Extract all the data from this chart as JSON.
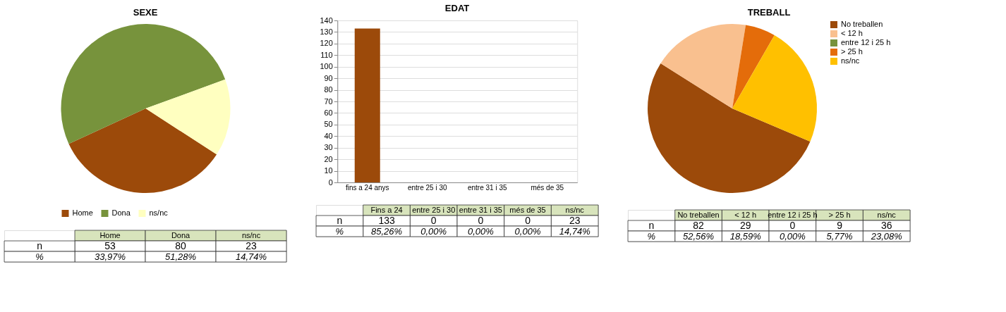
{
  "chart_data": [
    {
      "type": "pie",
      "title": "SEXE",
      "categories": [
        "Home",
        "Dona",
        "ns/nc"
      ],
      "values": [
        33.97,
        51.28,
        14.74
      ],
      "colors": [
        "#9c4a0a",
        "#77933c",
        "#ffffc0"
      ],
      "legend": "bottom",
      "annotations": [
        "n",
        "%",
        "Home",
        "Dona",
        "ns/nc",
        "53",
        "80",
        "23",
        "33,97%",
        "51,28%",
        "14,74%"
      ]
    },
    {
      "type": "bar",
      "title": "EDAT",
      "categories": [
        "fins a 24 anys",
        "entre 25 i 30",
        "entre 31 i 35",
        "més de 35"
      ],
      "values": [
        133,
        0,
        0,
        0
      ],
      "color": "#9c4a0a",
      "ylim": [
        0,
        140
      ],
      "yticks": [
        0,
        10,
        20,
        30,
        40,
        50,
        60,
        70,
        80,
        90,
        100,
        110,
        120,
        130,
        140
      ],
      "grid": "y",
      "annotations": [
        "n",
        "%",
        "Fins a 24",
        "entre 25 i 30",
        "entre 31 i 35",
        "més de 35",
        "ns/nc",
        "133",
        "0",
        "0",
        "0",
        "23",
        "85,26%",
        "0,00%",
        "0,00%",
        "0,00%",
        "14,74%"
      ]
    },
    {
      "type": "pie",
      "title": "TREBALL",
      "categories": [
        "No treballen",
        "< 12 h",
        "entre 12 i 25 h",
        "> 25 h",
        "ns/nc"
      ],
      "values": [
        52.56,
        18.59,
        0,
        5.77,
        23.08
      ],
      "colors": [
        "#9c4a0a",
        "#f9c08f",
        "#77933c",
        "#e46c0a",
        "#ffc000"
      ],
      "legend": "right",
      "annotations": [
        "n",
        "%",
        "No treballen",
        "< 12 h",
        "entre 12 i 25 h",
        "> 25 h",
        "ns/nc",
        "82",
        "29",
        "0",
        "9",
        "36",
        "52,56%",
        "18,59%",
        "0,00%",
        "5,77%",
        "23,08%"
      ]
    }
  ]
}
